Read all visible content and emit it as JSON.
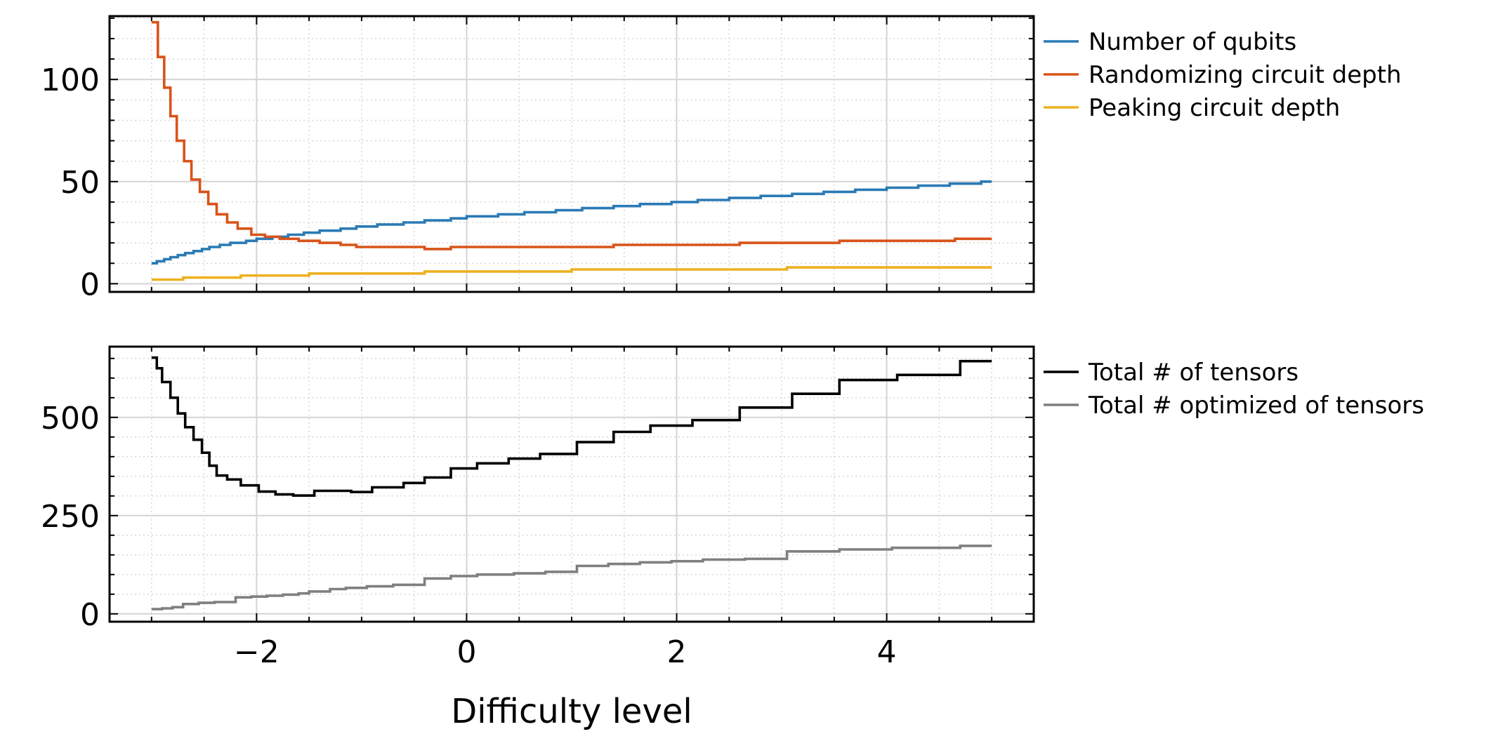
{
  "chart_data": [
    {
      "type": "line",
      "step": true,
      "xlabel": "",
      "ylabel": "",
      "xlim": [
        -3.4,
        5.4
      ],
      "ylim": [
        -4,
        131
      ],
      "xticks": [
        -2,
        0,
        2,
        4
      ],
      "yticks": [
        0,
        50,
        100
      ],
      "ytick_labels": [
        "0",
        "50",
        "100"
      ],
      "show_xtick_labels": false,
      "grid": true,
      "legend_position": "outside-right-top",
      "series": [
        {
          "name": "Number of qubits",
          "color": "#2a7ab5",
          "points": [
            [
              -3.0,
              10
            ],
            [
              -2.95,
              11
            ],
            [
              -2.88,
              12
            ],
            [
              -2.82,
              13
            ],
            [
              -2.75,
              14
            ],
            [
              -2.68,
              15
            ],
            [
              -2.6,
              16
            ],
            [
              -2.52,
              17
            ],
            [
              -2.45,
              18
            ],
            [
              -2.35,
              19
            ],
            [
              -2.25,
              20
            ],
            [
              -2.1,
              21
            ],
            [
              -2.0,
              22
            ],
            [
              -1.85,
              23
            ],
            [
              -1.7,
              24
            ],
            [
              -1.55,
              25
            ],
            [
              -1.4,
              26
            ],
            [
              -1.2,
              27
            ],
            [
              -1.05,
              28
            ],
            [
              -0.85,
              29
            ],
            [
              -0.6,
              30
            ],
            [
              -0.4,
              31
            ],
            [
              -0.15,
              32
            ],
            [
              0.0,
              33
            ],
            [
              0.3,
              34
            ],
            [
              0.55,
              35
            ],
            [
              0.85,
              36
            ],
            [
              1.1,
              37
            ],
            [
              1.4,
              38
            ],
            [
              1.65,
              39
            ],
            [
              1.95,
              40
            ],
            [
              2.2,
              41
            ],
            [
              2.5,
              42
            ],
            [
              2.8,
              43
            ],
            [
              3.1,
              44
            ],
            [
              3.4,
              45
            ],
            [
              3.7,
              46
            ],
            [
              4.0,
              47
            ],
            [
              4.3,
              48
            ],
            [
              4.6,
              49
            ],
            [
              4.9,
              50
            ],
            [
              5.0,
              50
            ]
          ]
        },
        {
          "name": "Randomizing circuit depth",
          "color": "#d95319",
          "points": [
            [
              -3.0,
              128
            ],
            [
              -2.94,
              111
            ],
            [
              -2.88,
              96
            ],
            [
              -2.82,
              82
            ],
            [
              -2.76,
              70
            ],
            [
              -2.69,
              60
            ],
            [
              -2.62,
              51
            ],
            [
              -2.54,
              45
            ],
            [
              -2.46,
              39
            ],
            [
              -2.38,
              34
            ],
            [
              -2.28,
              30
            ],
            [
              -2.18,
              27
            ],
            [
              -2.05,
              24
            ],
            [
              -1.92,
              23
            ],
            [
              -1.78,
              22
            ],
            [
              -1.6,
              21
            ],
            [
              -1.4,
              20
            ],
            [
              -1.2,
              19
            ],
            [
              -1.05,
              18
            ],
            [
              -0.4,
              17
            ],
            [
              -0.15,
              18
            ],
            [
              1.4,
              19
            ],
            [
              2.6,
              20
            ],
            [
              3.55,
              21
            ],
            [
              4.0,
              21
            ],
            [
              4.65,
              22
            ],
            [
              5.0,
              22
            ]
          ]
        },
        {
          "name": "Peaking circuit depth",
          "color": "#edb120",
          "points": [
            [
              -3.0,
              2
            ],
            [
              -2.7,
              3
            ],
            [
              -2.15,
              4
            ],
            [
              -1.5,
              5
            ],
            [
              -0.4,
              6
            ],
            [
              1.0,
              7
            ],
            [
              3.05,
              8
            ],
            [
              5.0,
              8
            ]
          ]
        }
      ]
    },
    {
      "type": "line",
      "step": true,
      "xlabel": "Difficulty level",
      "ylabel": "",
      "xlim": [
        -3.4,
        5.4
      ],
      "ylim": [
        -20,
        680
      ],
      "xticks": [
        -2,
        0,
        2,
        4
      ],
      "xtick_labels": [
        "−2",
        "0",
        "2",
        "4"
      ],
      "yticks": [
        0,
        250,
        500
      ],
      "ytick_labels": [
        "0",
        "250",
        "500"
      ],
      "grid": true,
      "legend_position": "outside-right-top",
      "series": [
        {
          "name": "Total # of tensors",
          "color": "#000000",
          "points": [
            [
              -3.0,
              652
            ],
            [
              -2.95,
              625
            ],
            [
              -2.9,
              590
            ],
            [
              -2.82,
              550
            ],
            [
              -2.75,
              510
            ],
            [
              -2.68,
              475
            ],
            [
              -2.6,
              443
            ],
            [
              -2.52,
              410
            ],
            [
              -2.45,
              377
            ],
            [
              -2.38,
              352
            ],
            [
              -2.28,
              342
            ],
            [
              -2.15,
              327
            ],
            [
              -1.98,
              311
            ],
            [
              -1.82,
              304
            ],
            [
              -1.65,
              301
            ],
            [
              -1.45,
              313
            ],
            [
              -1.1,
              310
            ],
            [
              -0.9,
              322
            ],
            [
              -0.6,
              333
            ],
            [
              -0.4,
              347
            ],
            [
              -0.15,
              370
            ],
            [
              0.1,
              383
            ],
            [
              0.4,
              395
            ],
            [
              0.7,
              407
            ],
            [
              1.05,
              437
            ],
            [
              1.4,
              463
            ],
            [
              1.75,
              479
            ],
            [
              2.15,
              493
            ],
            [
              2.6,
              525
            ],
            [
              3.1,
              560
            ],
            [
              3.55,
              595
            ],
            [
              4.1,
              608
            ],
            [
              4.7,
              643
            ],
            [
              5.0,
              643
            ]
          ]
        },
        {
          "name": "Total # optimized of tensors",
          "color": "#7f7f7f",
          "points": [
            [
              -3.0,
              12
            ],
            [
              -2.9,
              14
            ],
            [
              -2.8,
              17
            ],
            [
              -2.7,
              25
            ],
            [
              -2.55,
              28
            ],
            [
              -2.4,
              30
            ],
            [
              -2.2,
              42
            ],
            [
              -2.05,
              44
            ],
            [
              -1.9,
              46
            ],
            [
              -1.75,
              49
            ],
            [
              -1.6,
              52
            ],
            [
              -1.5,
              57
            ],
            [
              -1.3,
              63
            ],
            [
              -1.15,
              66
            ],
            [
              -0.95,
              70
            ],
            [
              -0.7,
              74
            ],
            [
              -0.4,
              90
            ],
            [
              -0.15,
              96
            ],
            [
              0.1,
              100
            ],
            [
              0.45,
              103
            ],
            [
              0.75,
              107
            ],
            [
              1.05,
              122
            ],
            [
              1.35,
              127
            ],
            [
              1.65,
              131
            ],
            [
              1.95,
              134
            ],
            [
              2.25,
              138
            ],
            [
              2.65,
              140
            ],
            [
              3.05,
              159
            ],
            [
              3.55,
              164
            ],
            [
              4.05,
              168
            ],
            [
              4.7,
              173
            ],
            [
              5.0,
              173
            ]
          ]
        }
      ]
    }
  ]
}
